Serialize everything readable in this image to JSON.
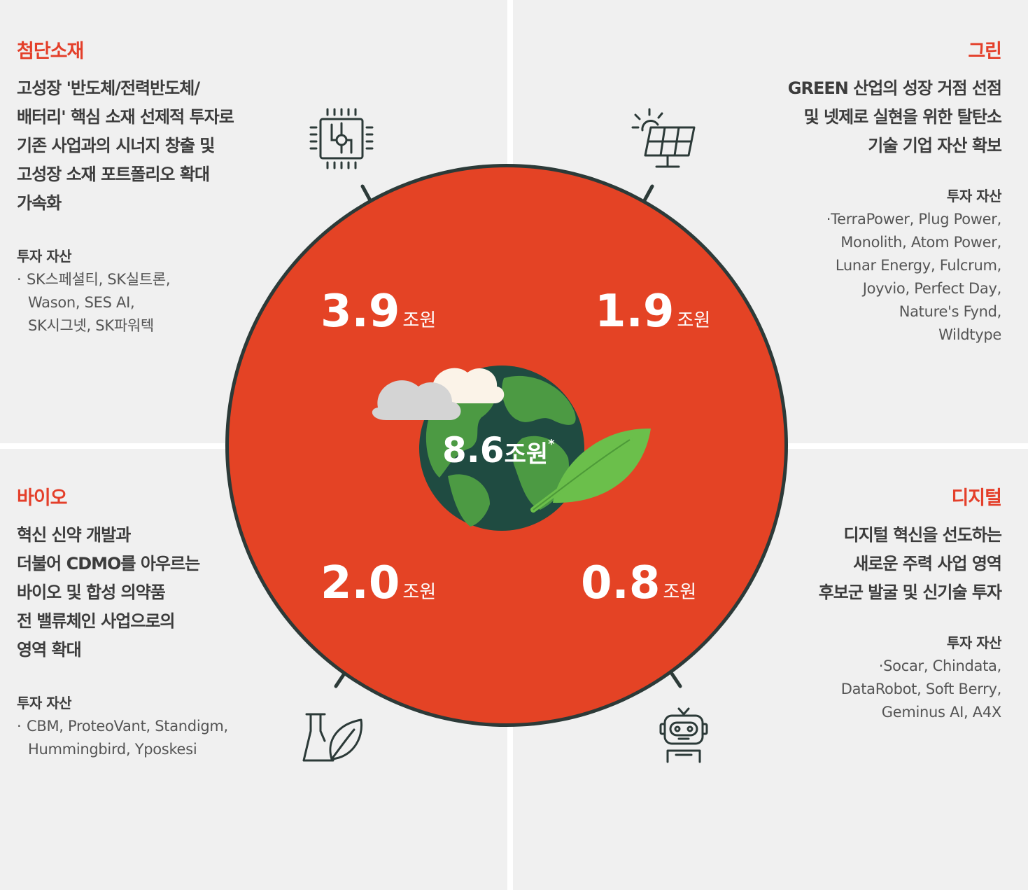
{
  "center": {
    "value": "8.6",
    "unit": "조원",
    "mark": "*"
  },
  "segments": [
    {
      "id": "advanced-materials",
      "amount": "3.9",
      "unit": "조원"
    },
    {
      "id": "green",
      "amount": "1.9",
      "unit": "조원"
    },
    {
      "id": "bio",
      "amount": "2.0",
      "unit": "조원"
    },
    {
      "id": "digital",
      "amount": "0.8",
      "unit": "조원"
    }
  ],
  "advanced": {
    "title": "첨단소재",
    "desc": [
      "고성장 '반도체/전력반도체/",
      "배터리' 핵심 소재 선제적 투자로",
      "기존 사업과의 시너지 창출 및",
      "고성장 소재 포트폴리오 확대",
      "가속화"
    ],
    "assets_label": "투자 자산",
    "assets": [
      "SK스페셜티, SK실트론,",
      "Wason, SES AI,",
      "SK시그넷, SK파워텍"
    ]
  },
  "green": {
    "title": "그린",
    "desc": [
      "GREEN 산업의 성장 거점 선점",
      "및 넷제로 실현을 위한 탈탄소",
      "기술 기업 자산 확보"
    ],
    "assets_label": "투자 자산",
    "assets": [
      "TerraPower, Plug Power,",
      "Monolith, Atom Power,",
      "Lunar Energy, Fulcrum,",
      "Joyvio, Perfect Day,",
      "Nature's Fynd,",
      "Wildtype"
    ]
  },
  "bio": {
    "title": "바이오",
    "desc": [
      "혁신 신약 개발과",
      "더불어 CDMO를 아우르는",
      "바이오 및 합성 의약품",
      "전 밸류체인 사업으로의",
      "영역 확대"
    ],
    "assets_label": "투자 자산",
    "assets": [
      "CBM, ProteoVant, Standigm,",
      "Hummingbird, Yposkesi"
    ]
  },
  "digital": {
    "title": "디지털",
    "desc": [
      "디지털 혁신을 선도하는",
      "새로운 주력 사업 영역",
      "후보군 발굴 및 신기술 투자"
    ],
    "assets_label": "투자 자산",
    "assets": [
      "Socar, Chindata,",
      "DataRobot, Soft Berry,",
      "Geminus AI, A4X"
    ]
  },
  "icons": [
    "chip-icon",
    "solar-panel-icon",
    "flask-leaf-icon",
    "robot-icon",
    "globe-icon",
    "cloud-icon",
    "leaf-icon"
  ],
  "colors": {
    "accent": "#e43f2a",
    "circle": "#e44325",
    "globe_ocean": "#1f4b41",
    "globe_land": "#4c9a43",
    "leaf": "#6bbf4b",
    "panel": "#f0f0f0"
  }
}
